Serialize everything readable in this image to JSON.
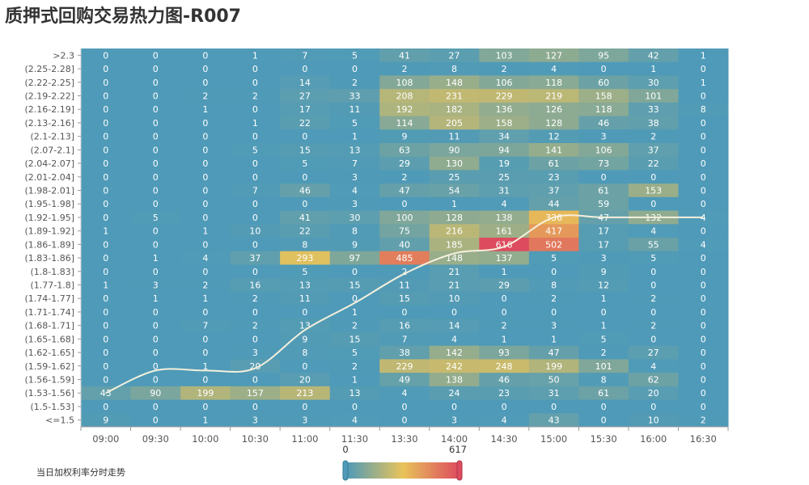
{
  "page": {
    "title": "质押式回购交易热力图-R007",
    "footnote": "当日加权利率分时走势"
  },
  "chart_data": {
    "type": "heatmap",
    "title": "质押式回购交易热力图-R007",
    "x": [
      "09:00",
      "09:30",
      "10:00",
      "10:30",
      "11:00",
      "11:30",
      "13:30",
      "14:00",
      "14:30",
      "15:00",
      "15:30",
      "16:00",
      "16:30"
    ],
    "y": [
      ">2.3",
      "(2.25-2.28]",
      "(2.22-2.25]",
      "(2.19-2.22]",
      "(2.16-2.19]",
      "(2.13-2.16]",
      "(2.1-2.13]",
      "(2.07-2.1]",
      "(2.04-2.07]",
      "(2.01-2.04]",
      "(1.98-2.01]",
      "(1.95-1.98]",
      "(1.92-1.95]",
      "(1.89-1.92]",
      "(1.86-1.89]",
      "(1.83-1.86]",
      "(1.8-1.83]",
      "(1.77-1.8]",
      "(1.74-1.77]",
      "(1.71-1.74]",
      "(1.68-1.71]",
      "(1.65-1.68]",
      "(1.62-1.65]",
      "(1.59-1.62]",
      "(1.56-1.59]",
      "(1.53-1.56]",
      "(1.5-1.53]",
      "<=1.5"
    ],
    "values": [
      [
        0,
        0,
        0,
        1,
        7,
        5,
        41,
        27,
        103,
        127,
        95,
        42,
        1
      ],
      [
        0,
        0,
        0,
        0,
        0,
        0,
        2,
        8,
        2,
        4,
        0,
        1,
        0
      ],
      [
        0,
        0,
        0,
        0,
        14,
        2,
        108,
        148,
        106,
        118,
        60,
        30,
        1
      ],
      [
        0,
        0,
        2,
        2,
        27,
        33,
        208,
        231,
        229,
        219,
        158,
        101,
        0
      ],
      [
        0,
        0,
        1,
        0,
        17,
        11,
        192,
        182,
        136,
        126,
        118,
        33,
        8
      ],
      [
        0,
        0,
        0,
        1,
        22,
        5,
        114,
        205,
        158,
        128,
        46,
        38,
        0
      ],
      [
        0,
        0,
        0,
        0,
        0,
        1,
        9,
        11,
        34,
        12,
        3,
        2,
        0
      ],
      [
        0,
        0,
        0,
        5,
        15,
        13,
        63,
        90,
        94,
        141,
        106,
        37,
        0
      ],
      [
        0,
        0,
        0,
        0,
        5,
        7,
        29,
        130,
        19,
        61,
        73,
        22,
        0
      ],
      [
        0,
        0,
        0,
        0,
        0,
        3,
        2,
        25,
        25,
        23,
        0,
        0,
        0
      ],
      [
        0,
        0,
        0,
        7,
        46,
        4,
        47,
        54,
        31,
        37,
        61,
        153,
        0
      ],
      [
        0,
        0,
        0,
        0,
        0,
        3,
        0,
        1,
        4,
        44,
        59,
        0,
        0
      ],
      [
        0,
        5,
        0,
        0,
        41,
        30,
        100,
        128,
        138,
        336,
        47,
        132,
        4
      ],
      [
        1,
        0,
        1,
        10,
        22,
        8,
        75,
        216,
        161,
        417,
        17,
        4,
        0
      ],
      [
        0,
        0,
        0,
        0,
        8,
        9,
        40,
        185,
        616,
        502,
        17,
        55,
        4
      ],
      [
        0,
        1,
        4,
        37,
        293,
        97,
        485,
        148,
        137,
        5,
        3,
        5,
        0
      ],
      [
        0,
        0,
        0,
        0,
        5,
        0,
        2,
        21,
        1,
        0,
        9,
        0,
        0
      ],
      [
        1,
        3,
        2,
        16,
        13,
        15,
        11,
        21,
        29,
        8,
        12,
        0,
        0
      ],
      [
        0,
        1,
        1,
        2,
        11,
        0,
        15,
        10,
        0,
        2,
        1,
        2,
        0
      ],
      [
        0,
        0,
        0,
        0,
        0,
        1,
        0,
        0,
        0,
        0,
        0,
        0,
        0
      ],
      [
        0,
        0,
        7,
        2,
        13,
        2,
        16,
        14,
        2,
        3,
        1,
        2,
        0
      ],
      [
        0,
        0,
        0,
        0,
        9,
        15,
        7,
        4,
        1,
        1,
        5,
        0,
        0
      ],
      [
        0,
        0,
        0,
        3,
        8,
        5,
        38,
        142,
        93,
        47,
        2,
        27,
        0
      ],
      [
        0,
        0,
        1,
        20,
        0,
        2,
        229,
        242,
        248,
        199,
        101,
        4,
        0
      ],
      [
        0,
        0,
        0,
        0,
        20,
        1,
        49,
        138,
        46,
        50,
        8,
        62,
        0
      ],
      [
        43,
        90,
        199,
        157,
        213,
        13,
        4,
        24,
        23,
        31,
        61,
        20,
        0
      ],
      [
        0,
        0,
        0,
        0,
        0,
        0,
        0,
        0,
        0,
        0,
        0,
        0,
        0
      ],
      [
        9,
        0,
        1,
        3,
        3,
        4,
        0,
        3,
        4,
        43,
        0,
        10,
        2
      ]
    ],
    "visual_map": {
      "min": 0,
      "max": 617,
      "min_label": "0",
      "max_label": "617",
      "colors": [
        "#4e9ab8",
        "#e8c35a",
        "#dd4b5e"
      ]
    },
    "trend_line": {
      "name": "当日加权利率分时走势",
      "points": [
        [
          0,
          1.545
        ],
        [
          1,
          1.595
        ],
        [
          2,
          1.595
        ],
        [
          3,
          1.6
        ],
        [
          4,
          1.685
        ],
        [
          5,
          1.745
        ],
        [
          6,
          1.81
        ],
        [
          7,
          1.855
        ],
        [
          8,
          1.87
        ],
        [
          9,
          1.935
        ],
        [
          10,
          1.935
        ],
        [
          11,
          1.935
        ],
        [
          12,
          1.935
        ]
      ]
    },
    "xlabel": "",
    "ylabel": "",
    "legend": "bottom-center"
  }
}
